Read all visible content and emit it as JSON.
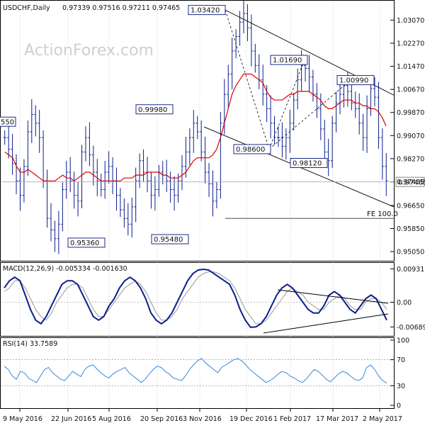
{
  "chart_data": {
    "type": "candlestick",
    "symbol_header": "USDCHF,Daily",
    "ohlc_header": "0.97339 0.97516 0.97211 0.97465",
    "watermark": "ActionForex.com",
    "y_ticks": [
      "1.03070",
      "1.02270",
      "1.01470",
      "1.00670",
      "0.99870",
      "0.99070",
      "0.98270",
      "0.97465",
      "0.96650",
      "0.95850",
      "0.95050"
    ],
    "x_ticks": [
      "9 May 2016",
      "22 Jun 2016",
      "5 Aug 2016",
      "20 Sep 2016",
      "3 Nov 2016",
      "19 Dec 2016",
      "1 Feb 2017",
      "17 Mar 2017",
      "2 May 2017"
    ],
    "price_labels": [
      "1.03420",
      "1.01690",
      "1.00990",
      "0.99980",
      "0.98600",
      "0.98120",
      "0.95360",
      "0.95480",
      "0.97465"
    ],
    "left_cut_label": "550",
    "fe_label": "FE 100.0",
    "price_closes": [
      0.99,
      0.986,
      0.981,
      0.975,
      0.97,
      0.98,
      0.992,
      0.998,
      0.995,
      0.99,
      0.975,
      0.962,
      0.958,
      0.955,
      0.96,
      0.972,
      0.978,
      0.975,
      0.97,
      0.968,
      0.985,
      0.99,
      0.984,
      0.978,
      0.975,
      0.972,
      0.978,
      0.98,
      0.975,
      0.97,
      0.965,
      0.962,
      0.96,
      0.966,
      0.975,
      0.982,
      0.978,
      0.975,
      0.97,
      0.972,
      0.978,
      0.977,
      0.975,
      0.972,
      0.97,
      0.975,
      0.98,
      0.985,
      0.99,
      0.995,
      0.992,
      0.985,
      0.978,
      0.974,
      0.968,
      0.972,
      0.995,
      1.005,
      1.012,
      1.02,
      1.025,
      1.03,
      1.033,
      1.028,
      1.02,
      1.015,
      1.01,
      1.005,
      1.0,
      0.995,
      0.99,
      0.99,
      0.987,
      0.99,
      0.995,
      1.003,
      1.01,
      1.015,
      1.014,
      1.011,
      1.005,
      1.0,
      0.993,
      0.985,
      0.982,
      0.995,
      1.002,
      1.005,
      1.008,
      1.006,
      1.002,
      1.0,
      0.995,
      0.99,
      1.0,
      1.007,
      1.004,
      0.99,
      0.98,
      0.975
    ],
    "price_ma": [
      0.985,
      0.984,
      0.983,
      0.98,
      0.978,
      0.978,
      0.979,
      0.978,
      0.977,
      0.976,
      0.975,
      0.975,
      0.975,
      0.975,
      0.976,
      0.977,
      0.976,
      0.976,
      0.975,
      0.976,
      0.977,
      0.978,
      0.978,
      0.977,
      0.976,
      0.975,
      0.975,
      0.975,
      0.975,
      0.975,
      0.975,
      0.976,
      0.976,
      0.976,
      0.977,
      0.977,
      0.977,
      0.978,
      0.978,
      0.978,
      0.978,
      0.977,
      0.977,
      0.976,
      0.976,
      0.976,
      0.977,
      0.978,
      0.98,
      0.982,
      0.983,
      0.983,
      0.983,
      0.983,
      0.984,
      0.986,
      0.99,
      0.995,
      1.0,
      1.005,
      1.008,
      1.01,
      1.012,
      1.012,
      1.012,
      1.011,
      1.01,
      1.009,
      1.006,
      1.004,
      1.003,
      1.003,
      1.003,
      1.004,
      1.005,
      1.005,
      1.006,
      1.006,
      1.006,
      1.006,
      1.005,
      1.004,
      1.003,
      1.001,
      1.0,
      1.0,
      1.001,
      1.002,
      1.003,
      1.003,
      1.003,
      1.002,
      1.002,
      1.001,
      1.001,
      1.0,
      1.0,
      0.999,
      0.997,
      0.994
    ],
    "macd_header": "MACD(12,26,9) -0.005334 -0.001630",
    "macd_ticks": [
      "0.009318",
      "0.00",
      "-0.006894"
    ],
    "macd_line": [
      0.004,
      0.006,
      0.007,
      0.006,
      0.002,
      -0.002,
      -0.005,
      -0.006,
      -0.004,
      -0.001,
      0.002,
      0.005,
      0.006,
      0.006,
      0.005,
      0.002,
      -0.001,
      -0.004,
      -0.005,
      -0.004,
      -0.001,
      0.001,
      0.004,
      0.006,
      0.007,
      0.006,
      0.004,
      0.001,
      -0.003,
      -0.005,
      -0.006,
      -0.005,
      -0.003,
      0.0,
      0.003,
      0.006,
      0.008,
      0.009,
      0.0092,
      0.009,
      0.008,
      0.007,
      0.006,
      0.005,
      0.002,
      -0.002,
      -0.005,
      -0.007,
      -0.0069,
      -0.006,
      -0.004,
      -0.001,
      0.002,
      0.004,
      0.005,
      0.004,
      0.002,
      0.0,
      -0.002,
      -0.003,
      -0.003,
      -0.001,
      0.002,
      0.003,
      0.002,
      0.0,
      -0.002,
      -0.003,
      -0.001,
      0.001,
      0.002,
      0.001,
      -0.002,
      -0.005
    ],
    "macd_signal": [
      0.003,
      0.004,
      0.006,
      0.006,
      0.004,
      0.001,
      -0.002,
      -0.004,
      -0.005,
      -0.003,
      0.0,
      0.002,
      0.004,
      0.005,
      0.005,
      0.004,
      0.001,
      -0.002,
      -0.004,
      -0.004,
      -0.002,
      0.0,
      0.002,
      0.004,
      0.005,
      0.006,
      0.005,
      0.003,
      0.0,
      -0.003,
      -0.005,
      -0.005,
      -0.004,
      -0.002,
      0.001,
      0.003,
      0.005,
      0.007,
      0.008,
      0.0085,
      0.0085,
      0.008,
      0.007,
      0.006,
      0.004,
      0.001,
      -0.002,
      -0.004,
      -0.006,
      -0.006,
      -0.005,
      -0.003,
      -0.001,
      0.001,
      0.003,
      0.004,
      0.003,
      0.002,
      0.0,
      -0.001,
      -0.002,
      -0.002,
      0.0,
      0.001,
      0.002,
      0.001,
      -0.001,
      -0.002,
      -0.002,
      0.0,
      0.001,
      0.001,
      0.0,
      -0.002
    ],
    "rsi_header": "RSI(14) 33.7589",
    "rsi_ticks": [
      "100",
      "70",
      "30",
      "0"
    ],
    "rsi_values": [
      60,
      55,
      45,
      40,
      52,
      50,
      42,
      38,
      35,
      45,
      55,
      58,
      50,
      45,
      40,
      38,
      45,
      52,
      48,
      44,
      55,
      60,
      62,
      56,
      50,
      45,
      42,
      48,
      52,
      55,
      58,
      50,
      45,
      40,
      35,
      40,
      48,
      55,
      60,
      58,
      52,
      48,
      42,
      40,
      38,
      45,
      55,
      62,
      68,
      72,
      65,
      60,
      55,
      50,
      58,
      62,
      66,
      70,
      72,
      68,
      62,
      55,
      50,
      45,
      40,
      35,
      38,
      42,
      48,
      52,
      50,
      45,
      42,
      38,
      35,
      40,
      48,
      55,
      52,
      46,
      40,
      36,
      42,
      48,
      52,
      50,
      45,
      40,
      38,
      42,
      58,
      62,
      55,
      45,
      38,
      34
    ],
    "colors": {
      "candle": "#0b1e8c",
      "ma": "#dd0000",
      "macd": "#0b1e8c",
      "signal": "#999999",
      "rsi": "#3a86d8",
      "line": "#000000",
      "grid": "#cccccc"
    }
  }
}
